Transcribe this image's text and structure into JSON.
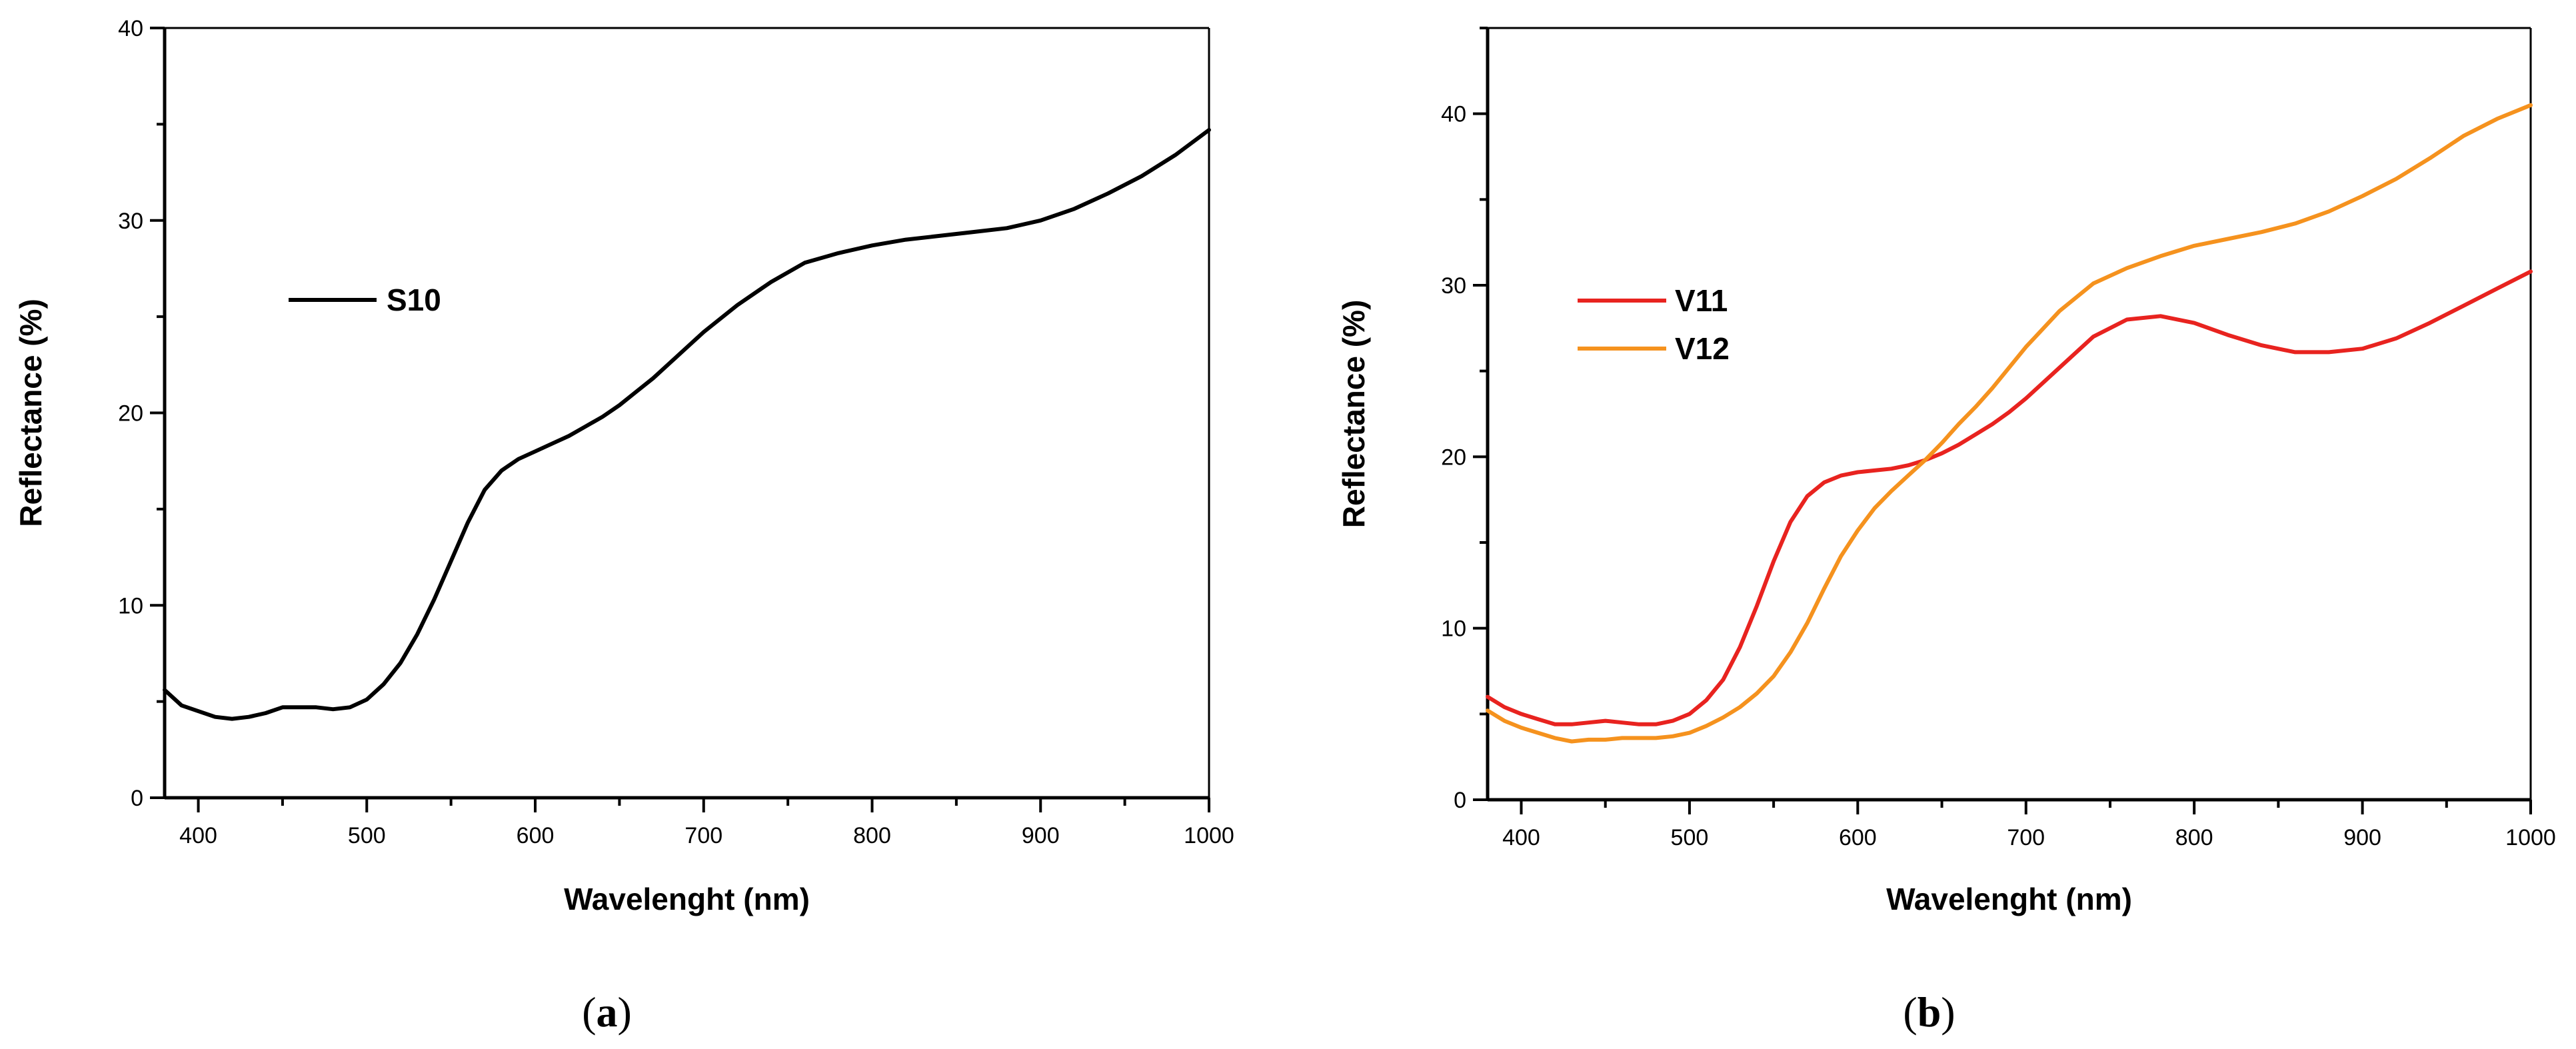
{
  "chart_data": [
    {
      "type": "line",
      "panel_label": "a",
      "xlabel": "Wavelenght (nm)",
      "ylabel": "Reflectance (%)",
      "xlim": [
        380,
        1000
      ],
      "ylim": [
        0,
        40
      ],
      "xticks": [
        400,
        500,
        600,
        700,
        800,
        900,
        1000
      ],
      "yticks": [
        0,
        10,
        20,
        30,
        40
      ],
      "grid": false,
      "legend_position": "upper-left",
      "series": [
        {
          "name": "S10",
          "color": "#000000",
          "x": [
            380,
            390,
            400,
            410,
            420,
            430,
            440,
            450,
            460,
            470,
            480,
            490,
            500,
            510,
            520,
            530,
            540,
            550,
            560,
            570,
            580,
            590,
            600,
            610,
            620,
            630,
            640,
            650,
            660,
            670,
            680,
            690,
            700,
            720,
            740,
            760,
            780,
            800,
            820,
            840,
            860,
            880,
            900,
            920,
            940,
            960,
            980,
            1000
          ],
          "y": [
            5.6,
            4.8,
            4.5,
            4.2,
            4.1,
            4.2,
            4.4,
            4.7,
            4.7,
            4.7,
            4.6,
            4.7,
            5.1,
            5.9,
            7.0,
            8.5,
            10.3,
            12.3,
            14.3,
            16.0,
            17.0,
            17.6,
            18.0,
            18.4,
            18.8,
            19.3,
            19.8,
            20.4,
            21.1,
            21.8,
            22.6,
            23.4,
            24.2,
            25.6,
            26.8,
            27.8,
            28.3,
            28.7,
            29.0,
            29.2,
            29.4,
            29.6,
            30.0,
            30.6,
            31.4,
            32.3,
            33.4,
            34.7
          ]
        }
      ]
    },
    {
      "type": "line",
      "panel_label": "b",
      "xlabel": "Wavelenght (nm)",
      "ylabel": "Reflectance (%)",
      "xlim": [
        380,
        1000
      ],
      "ylim": [
        0,
        45
      ],
      "xticks": [
        400,
        500,
        600,
        700,
        800,
        900,
        1000
      ],
      "yticks": [
        0,
        10,
        20,
        30,
        40
      ],
      "grid": false,
      "legend_position": "upper-left",
      "series": [
        {
          "name": "V11",
          "color": "#e8231f",
          "x": [
            380,
            390,
            400,
            410,
            420,
            430,
            440,
            450,
            460,
            470,
            480,
            490,
            500,
            510,
            520,
            530,
            540,
            550,
            560,
            570,
            580,
            590,
            600,
            610,
            620,
            630,
            640,
            650,
            660,
            670,
            680,
            690,
            700,
            720,
            740,
            760,
            780,
            800,
            820,
            840,
            860,
            880,
            900,
            920,
            940,
            960,
            980,
            1000
          ],
          "y": [
            6.0,
            5.4,
            5.0,
            4.7,
            4.4,
            4.4,
            4.5,
            4.6,
            4.5,
            4.4,
            4.4,
            4.6,
            5.0,
            5.8,
            7.0,
            8.9,
            11.3,
            13.9,
            16.2,
            17.7,
            18.5,
            18.9,
            19.1,
            19.2,
            19.3,
            19.5,
            19.8,
            20.2,
            20.7,
            21.3,
            21.9,
            22.6,
            23.4,
            25.2,
            27.0,
            28.0,
            28.2,
            27.8,
            27.1,
            26.5,
            26.1,
            26.1,
            26.3,
            26.9,
            27.8,
            28.8,
            29.8,
            30.8
          ]
        },
        {
          "name": "V12",
          "color": "#f5921e",
          "x": [
            380,
            390,
            400,
            410,
            420,
            430,
            440,
            450,
            460,
            470,
            480,
            490,
            500,
            510,
            520,
            530,
            540,
            550,
            560,
            570,
            580,
            590,
            600,
            610,
            620,
            630,
            640,
            650,
            660,
            670,
            680,
            690,
            700,
            720,
            740,
            760,
            780,
            800,
            820,
            840,
            860,
            880,
            900,
            920,
            940,
            960,
            980,
            1000
          ],
          "y": [
            5.2,
            4.6,
            4.2,
            3.9,
            3.6,
            3.4,
            3.5,
            3.5,
            3.6,
            3.6,
            3.6,
            3.7,
            3.9,
            4.3,
            4.8,
            5.4,
            6.2,
            7.2,
            8.6,
            10.3,
            12.3,
            14.2,
            15.7,
            17.0,
            18.0,
            18.9,
            19.8,
            20.8,
            21.9,
            22.9,
            24.0,
            25.2,
            26.4,
            28.5,
            30.1,
            31.0,
            31.7,
            32.3,
            32.7,
            33.1,
            33.6,
            34.3,
            35.2,
            36.2,
            37.4,
            38.7,
            39.7,
            40.5
          ]
        }
      ]
    }
  ]
}
